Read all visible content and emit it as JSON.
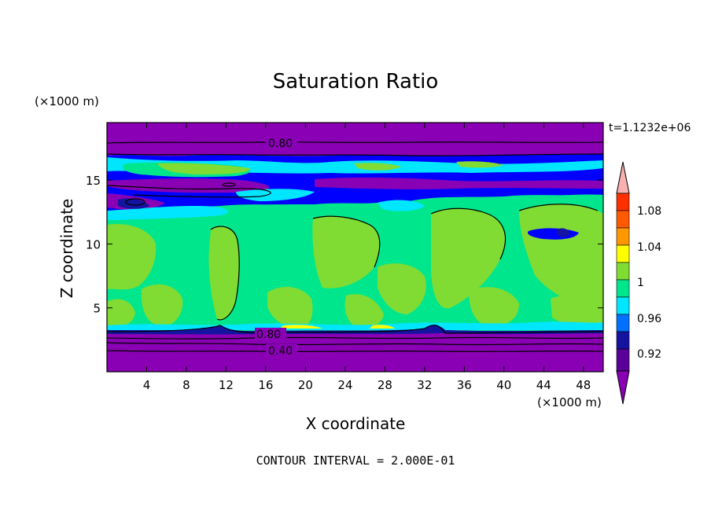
{
  "chart_data": {
    "type": "contour",
    "title": "Saturation Ratio",
    "xlabel": "X coordinate",
    "ylabel": "Z coordinate",
    "x_unit": "(×1000 m)",
    "y_unit": "(×1000 m)",
    "time_label": "t=1.1232e+06",
    "contour_interval": "CONTOUR INTERVAL = 2.000E-01",
    "xlim": [
      0,
      50
    ],
    "ylim": [
      0,
      19.5
    ],
    "x_ticks": [
      "4",
      "8",
      "12",
      "16",
      "20",
      "24",
      "28",
      "32",
      "36",
      "40",
      "44",
      "48"
    ],
    "y_ticks": [
      "5",
      "10",
      "15"
    ],
    "contour_labels": [
      "0.80",
      "0.80",
      "0.40"
    ],
    "colorbar": {
      "labels": [
        "1.08",
        "1.04",
        "1",
        "0.96",
        "0.92"
      ],
      "colors": [
        "#5a009a",
        "#2a2ab4",
        "#0000ff",
        "#00a0ff",
        "#00ffff",
        "#00e080",
        "#7fdc32",
        "#ffff00",
        "#ffc000",
        "#ff8000",
        "#ff3000",
        "#f08080",
        "#f8b0b0"
      ]
    },
    "bands": [
      {
        "z_range": [
          0,
          3.2
        ],
        "ratio_range": "< 0.9",
        "color": "#8a00b4"
      },
      {
        "z_range": [
          3.2,
          11.5
        ],
        "ratio_range": "0.98-1.02",
        "color": "#00e080 / #7fdc32"
      },
      {
        "z_range": [
          11.5,
          17
        ],
        "ratio_range": "0.90-0.98",
        "color": "#0000ff / #00ffff"
      },
      {
        "z_range": [
          17,
          19.5
        ],
        "ratio_range": "< 0.9",
        "color": "#8a00b4"
      }
    ]
  },
  "colors": {
    "purple": "#8a00b4",
    "navy": "#1414a0",
    "blue": "#0000ff",
    "cyan": "#00e6ff",
    "mint": "#00e68c",
    "lime": "#80dc32",
    "yellow": "#ffff00"
  }
}
